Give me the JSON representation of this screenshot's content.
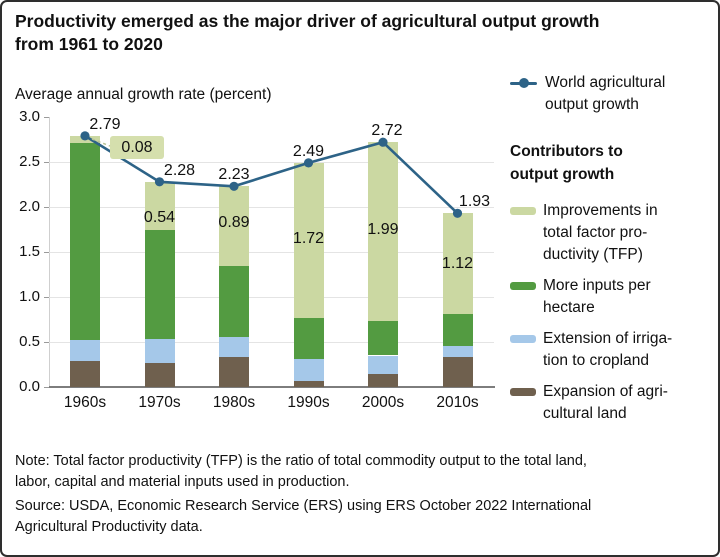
{
  "header": {
    "title": "Productivity emerged as the major driver of agricultural output growth\nfrom 1961 to 2020"
  },
  "chart_data": {
    "type": "bar",
    "subtype": "stacked-bar-with-line",
    "axis_title": "Average annual growth rate (percent)",
    "categories": [
      "1960s",
      "1970s",
      "1980s",
      "1990s",
      "2000s",
      "2010s"
    ],
    "series": [
      {
        "name": "Expansion of agricultural land",
        "color": "#6f604e",
        "values": [
          0.29,
          0.27,
          0.33,
          0.07,
          0.15,
          0.33
        ]
      },
      {
        "name": "Extension of irrigation to cropland",
        "color": "#a5c8e9",
        "values": [
          0.23,
          0.26,
          0.23,
          0.24,
          0.2,
          0.13
        ]
      },
      {
        "name": "More inputs per hectare",
        "color": "#539b41",
        "values": [
          2.19,
          1.21,
          0.78,
          0.46,
          0.38,
          0.35
        ]
      },
      {
        "name": "Improvements in total factor productivity (TFP)",
        "color": "#cbd8a2",
        "values": [
          0.08,
          0.54,
          0.89,
          1.72,
          1.99,
          1.12
        ],
        "labels": [
          "0.08",
          "0.54",
          "0.89",
          "1.72",
          "1.99",
          "1.12"
        ]
      }
    ],
    "line": {
      "name": "World agricultural output growth",
      "color": "#2d6387",
      "values": [
        2.79,
        2.28,
        2.23,
        2.49,
        2.72,
        1.93
      ],
      "labels": [
        "2.79",
        "2.28",
        "2.23",
        "2.49",
        "2.72",
        "1.93"
      ]
    },
    "yticks": [
      0.0,
      0.5,
      1.0,
      1.5,
      2.0,
      2.5,
      3.0
    ],
    "ytick_labels": [
      "0.0",
      "0.5",
      "1.0",
      "1.5",
      "2.0",
      "2.5",
      "3.0"
    ],
    "ylim": [
      0,
      3.0
    ],
    "grid": true,
    "legend_position": "right"
  },
  "legend": {
    "line_label": "World agricultural\noutput growth",
    "heading": "Contributors to\noutput growth",
    "items": [
      {
        "label": "Improvements in\ntotal factor pro-\nductivity (TFP)",
        "color": "#cbd8a2"
      },
      {
        "label": "More inputs per\nhectare",
        "color": "#539b41"
      },
      {
        "label": "Extension of irriga-\ntion to cropland",
        "color": "#a5c8e9"
      },
      {
        "label": "Expansion of agri-\ncultural land",
        "color": "#6f604e"
      }
    ]
  },
  "note": "Note: Total factor productivity (TFP) is the ratio of total commodity output to the total land,\nlabor, capital and material inputs used in production.",
  "source": "Source: USDA, Economic Research Service (ERS) using ERS October 2022 International\nAgricultural Productivity data."
}
